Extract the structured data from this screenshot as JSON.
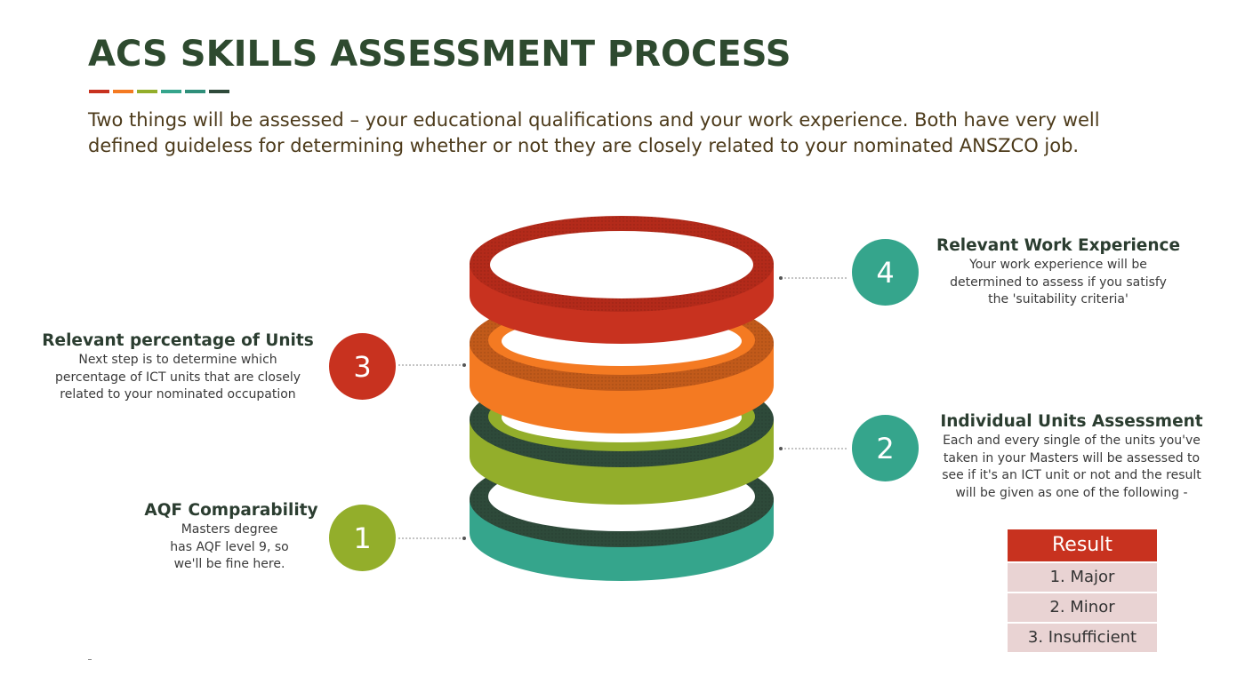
{
  "title": "ACS SKILLS ASSESSMENT PROCESS",
  "subtitle": "Two things will be assessed – your educational qualifications and your work experience. Both have very well defined guideless for determining whether or not they are closely related to your nominated ANSZCO job.",
  "colors": {
    "red": "#c8321f",
    "orange": "#f47a22",
    "green": "#93ae2b",
    "teal": "#35a58c",
    "dark": "#2e4a3a"
  },
  "steps": [
    {
      "number": "1",
      "title": "AQF Comparability",
      "description": "Masters degree has AQF level 9, so we'll be fine here.",
      "color": "#93ae2b"
    },
    {
      "number": "2",
      "title": "Individual Units Assessment",
      "description": "Each and every single of the units you've taken in your Masters will be assessed to see if it's an ICT unit or not and the result will be given as one of the following -",
      "color": "#35a58c"
    },
    {
      "number": "3",
      "title": "Relevant percentage of Units",
      "description": "Next step is to determine which percentage of ICT units that are closely related to your nominated occupation",
      "color": "#c8321f"
    },
    {
      "number": "4",
      "title": "Relevant Work Experience",
      "description": "Your work experience will be determined to assess if you satisfy the 'suitability criteria'",
      "color": "#35a58c"
    }
  ],
  "result_table": {
    "header": "Result",
    "rows": [
      "1. Major",
      "2. Minor",
      "3. Insufficient"
    ]
  }
}
